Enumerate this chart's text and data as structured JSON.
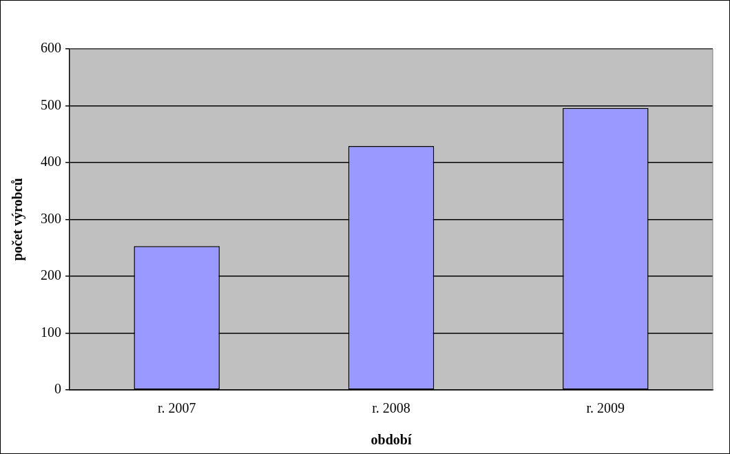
{
  "chart_data": {
    "type": "bar",
    "xlabel": "období",
    "ylabel": "počet výrobců",
    "categories": [
      "r. 2007",
      "r. 2008",
      "r. 2009"
    ],
    "values": [
      253,
      429,
      496
    ],
    "color": "#9999ff",
    "ylim": [
      0,
      600
    ],
    "yticks": [
      0,
      100,
      200,
      300,
      400,
      500,
      600
    ],
    "grid": "y"
  }
}
